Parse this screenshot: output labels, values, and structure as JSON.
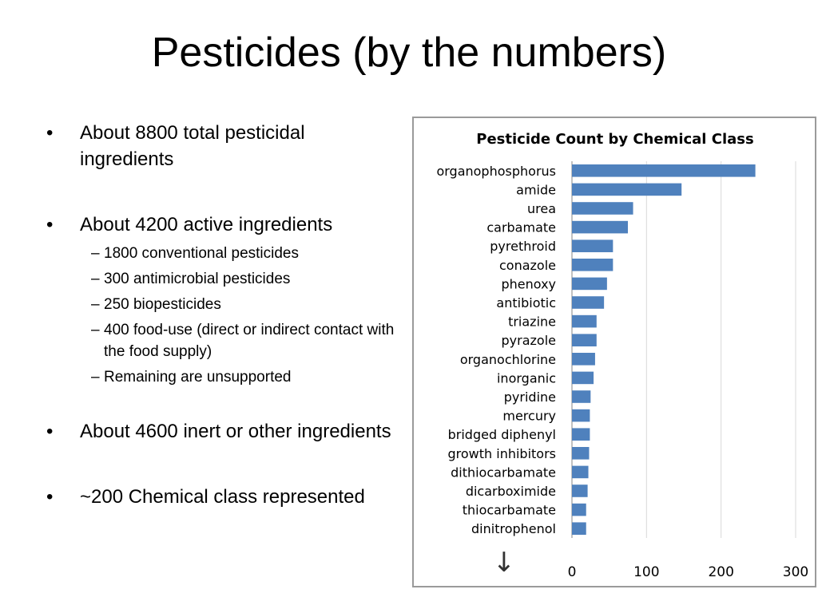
{
  "slide": {
    "title": "Pesticides (by the numbers)",
    "bullets": [
      {
        "text": "About 8800 total pesticidal ingredients",
        "sub": []
      },
      {
        "text": "About 4200 active ingredients",
        "sub": [
          "1800 conventional pesticides",
          "300 antimicrobial pesticides",
          "250 biopesticides",
          "400 food-use (direct or indirect contact with the food supply)",
          "Remaining are unsupported"
        ]
      },
      {
        "text": "About 4600 inert or other ingredients",
        "sub": []
      },
      {
        "text": "~200 Chemical class represented",
        "sub": []
      }
    ],
    "bullet_marker": "•",
    "sub_marker": "–"
  },
  "chart_data": {
    "type": "bar",
    "orientation": "horizontal",
    "title": "Pesticide Count by Chemical Class",
    "xlabel": "",
    "ylabel": "",
    "categories": [
      "organophosphorus",
      "amide",
      "urea",
      "carbamate",
      "pyrethroid",
      "conazole",
      "phenoxy",
      "antibiotic",
      "triazine",
      "pyrazole",
      "organochlorine",
      "inorganic",
      "pyridine",
      "mercury",
      "bridged diphenyl",
      "growth inhibitors",
      "dithiocarbamate",
      "dicarboximide",
      "thiocarbamate",
      "dinitrophenol"
    ],
    "values": [
      246,
      147,
      82,
      75,
      55,
      55,
      47,
      43,
      33,
      33,
      31,
      29,
      25,
      24,
      24,
      23,
      22,
      21,
      19,
      19
    ],
    "xlim": [
      0,
      300
    ],
    "xticks": [
      0,
      100,
      200,
      300
    ],
    "grid": true,
    "bar_color": "#4f81bd",
    "annotation": "↓"
  }
}
